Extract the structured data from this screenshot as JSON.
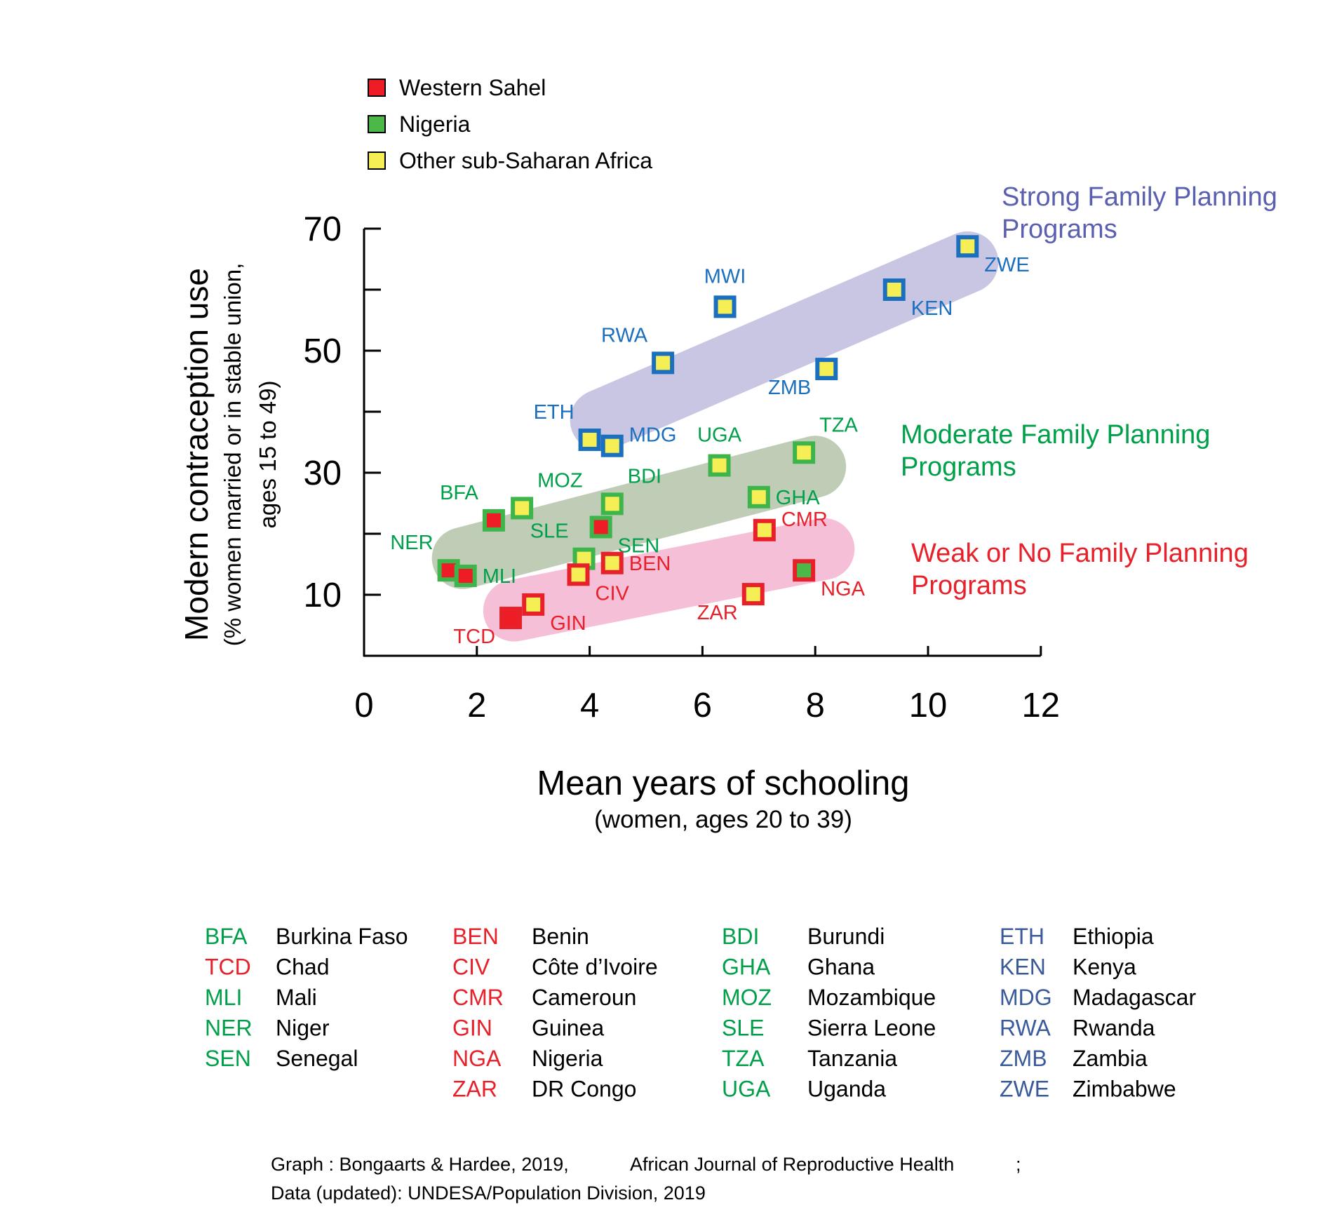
{
  "chart_data": {
    "type": "scatter",
    "xlabel": "Mean years of schooling",
    "xlabel_sub": "(women, ages 20 to 39)",
    "ylabel": "Modern contraception use",
    "ylabel_sub1": "(% women married or in stable union,",
    "ylabel_sub2": "ages 15 to 49)",
    "xlim": [
      0,
      12
    ],
    "ylim": [
      0,
      70
    ],
    "x_ticks": [
      "0",
      "2",
      "4",
      "6",
      "8",
      "10",
      "12"
    ],
    "y_ticks": [
      "10",
      "30",
      "50",
      "70"
    ],
    "legend": [
      {
        "key": "sahel",
        "label": "Western Sahel",
        "color": "#ee1c25"
      },
      {
        "key": "nigeria",
        "label": "Nigeria",
        "color": "#4cb848"
      },
      {
        "key": "other",
        "label": "Other sub-Saharan Africa",
        "color": "#f5ee55"
      }
    ],
    "program_groups": [
      {
        "key": "strong",
        "label1": "Strong Family Planning",
        "label2": "Programs",
        "color": "#5a5fb0",
        "point_color": "#1b6fbf",
        "band_color": "#c9c6e3"
      },
      {
        "key": "moderate",
        "label1": "Moderate Family Planning",
        "label2": "Programs",
        "color": "#00a04a",
        "point_color": "#3db54a",
        "band_color": "#bfcdb6"
      },
      {
        "key": "weak",
        "label1": "Weak or No Family Planning",
        "label2": "Programs",
        "color": "#e8202a",
        "point_color": "#e8202a",
        "band_color": "#f6bfd8"
      }
    ],
    "points": [
      {
        "code": "ZWE",
        "x": 10.7,
        "y": 67.1,
        "region": "other",
        "program": "strong",
        "label_pos": "below-right"
      },
      {
        "code": "KEN",
        "x": 9.4,
        "y": 60.0,
        "region": "other",
        "program": "strong",
        "label_pos": "below-right"
      },
      {
        "code": "MWI",
        "x": 6.4,
        "y": 57.2,
        "region": "other",
        "program": "strong",
        "label_pos": "above"
      },
      {
        "code": "RWA",
        "x": 5.3,
        "y": 48.0,
        "region": "other",
        "program": "strong",
        "label_pos": "above-left"
      },
      {
        "code": "ZMB",
        "x": 8.2,
        "y": 47.0,
        "region": "other",
        "program": "strong",
        "label_pos": "below-left"
      },
      {
        "code": "ETH",
        "x": 4.0,
        "y": 35.4,
        "region": "other",
        "program": "strong",
        "label_pos": "above-left"
      },
      {
        "code": "MDG",
        "x": 4.4,
        "y": 34.4,
        "region": "other",
        "program": "strong",
        "label_pos": "right-up"
      },
      {
        "code": "UGA",
        "x": 6.3,
        "y": 31.2,
        "region": "other",
        "program": "moderate",
        "label_pos": "above"
      },
      {
        "code": "TZA",
        "x": 7.8,
        "y": 33.3,
        "region": "other",
        "program": "moderate",
        "label_pos": "above-right"
      },
      {
        "code": "GHA",
        "x": 7.0,
        "y": 26.0,
        "region": "other",
        "program": "moderate",
        "label_pos": "right"
      },
      {
        "code": "MOZ",
        "x": 2.8,
        "y": 24.2,
        "region": "other",
        "program": "moderate",
        "label_pos": "above-right"
      },
      {
        "code": "BDI",
        "x": 4.4,
        "y": 24.9,
        "region": "other",
        "program": "moderate",
        "label_pos": "above-right"
      },
      {
        "code": "BFA",
        "x": 2.3,
        "y": 22.2,
        "region": "sahel",
        "program": "moderate",
        "label_pos": "above-left"
      },
      {
        "code": "SEN",
        "x": 4.2,
        "y": 21.1,
        "region": "sahel",
        "program": "moderate",
        "label_pos": "below-right"
      },
      {
        "code": "SLE",
        "x": 3.9,
        "y": 15.9,
        "region": "other",
        "program": "moderate",
        "label_pos": "above-left"
      },
      {
        "code": "NER",
        "x": 1.5,
        "y": 14.0,
        "region": "sahel",
        "program": "moderate",
        "label_pos": "above-left"
      },
      {
        "code": "MLI",
        "x": 1.8,
        "y": 13.1,
        "region": "sahel",
        "program": "moderate",
        "label_pos": "right"
      },
      {
        "code": "CMR",
        "x": 7.1,
        "y": 20.6,
        "region": "other",
        "program": "weak",
        "label_pos": "right-up"
      },
      {
        "code": "BEN",
        "x": 4.4,
        "y": 15.2,
        "region": "other",
        "program": "weak",
        "label_pos": "right"
      },
      {
        "code": "CIV",
        "x": 3.8,
        "y": 13.3,
        "region": "other",
        "program": "weak",
        "label_pos": "below-right"
      },
      {
        "code": "NGA",
        "x": 7.8,
        "y": 14.0,
        "region": "nigeria",
        "program": "weak",
        "label_pos": "below-right"
      },
      {
        "code": "ZAR",
        "x": 6.9,
        "y": 10.1,
        "region": "other",
        "program": "weak",
        "label_pos": "below-left"
      },
      {
        "code": "GIN",
        "x": 3.0,
        "y": 8.4,
        "region": "other",
        "program": "weak",
        "label_pos": "below-right"
      },
      {
        "code": "TCD",
        "x": 2.6,
        "y": 6.2,
        "region": "sahel",
        "program": "weak",
        "label_pos": "below-left"
      }
    ]
  },
  "country_key": {
    "columns": [
      {
        "color": "#00a04a",
        "rows": [
          [
            "BFA",
            "Burkina Faso"
          ],
          [
            "TCD",
            "Chad"
          ],
          [
            "MLI",
            "Mali"
          ],
          [
            "NER",
            "Niger"
          ],
          [
            "SEN",
            "Senegal"
          ]
        ],
        "code_colors": [
          "#00a04a",
          "#e8202a",
          "#00a04a",
          "#00a04a",
          "#00a04a"
        ]
      },
      {
        "color": "#e8202a",
        "rows": [
          [
            "BEN",
            "Benin"
          ],
          [
            "CIV",
            "Côte d’Ivoire"
          ],
          [
            "CMR",
            "Cameroun"
          ],
          [
            "GIN",
            "Guinea"
          ],
          [
            "NGA",
            "Nigeria"
          ],
          [
            "ZAR",
            "DR Congo"
          ]
        ],
        "code_colors": [
          "#e8202a",
          "#e8202a",
          "#e8202a",
          "#e8202a",
          "#e8202a",
          "#e8202a"
        ]
      },
      {
        "color": "#00a04a",
        "rows": [
          [
            "BDI",
            "Burundi"
          ],
          [
            "GHA",
            "Ghana"
          ],
          [
            "MOZ",
            "Mozambique"
          ],
          [
            "SLE",
            "Sierra Leone"
          ],
          [
            "TZA",
            "Tanzania"
          ],
          [
            "UGA",
            "Uganda"
          ]
        ],
        "code_colors": [
          "#00a04a",
          "#00a04a",
          "#00a04a",
          "#00a04a",
          "#00a04a",
          "#00a04a"
        ]
      },
      {
        "color": "#3a5a9c",
        "rows": [
          [
            "ETH",
            "Ethiopia"
          ],
          [
            "KEN",
            "Kenya"
          ],
          [
            "MDG",
            "Madagascar"
          ],
          [
            "RWA",
            "Rwanda"
          ],
          [
            "ZMB",
            "Zambia"
          ],
          [
            "ZWE",
            "Zimbabwe"
          ]
        ],
        "code_colors": [
          "#3a5a9c",
          "#3a5a9c",
          "#3a5a9c",
          "#3a5a9c",
          "#3a5a9c",
          "#3a5a9c"
        ]
      }
    ]
  },
  "footer": {
    "line1a": "Graph : Bongaarts & Hardee, 2019,",
    "line1b": "African Journal of Reproductive Health",
    "line1c": ";",
    "line2": "Data  (updated): UNDESA/Population Division, 2019"
  }
}
